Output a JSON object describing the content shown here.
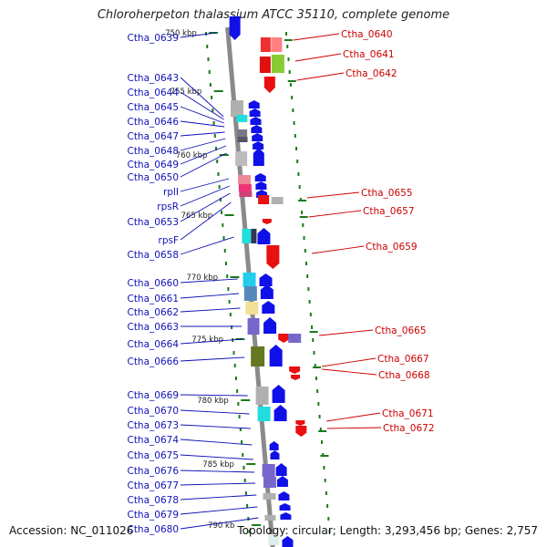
{
  "title": "Chloroherpeton thalassium ATCC 35110, complete genome",
  "footer": {
    "accession": "Accession: NC_011026",
    "summary": "Topology: circular; Length: 3,293,456 bp; Genes: 2,757"
  },
  "colors": {
    "left_label": "#1010b8",
    "right_label": "#cc0000",
    "backbone": "#8a8a8a",
    "tick": "#1a7a1a",
    "forward": "#1010e8",
    "reverse": "#e81010"
  },
  "scale_labels": [
    "750 kbp",
    "755 kbp",
    "760 kbp",
    "765 kbp",
    "770 kbp",
    "775 kbp",
    "780 kbp",
    "785 kbp",
    "790 kb"
  ],
  "left_genes": [
    "Ctha_0639",
    "Ctha_0643",
    "Ctha_0644",
    "Ctha_0645",
    "Ctha_0646",
    "Ctha_0647",
    "Ctha_0648",
    "Ctha_0649",
    "Ctha_0650",
    "rplI",
    "rpsR",
    "Ctha_0653",
    "rpsF",
    "Ctha_0658",
    "Ctha_0660",
    "Ctha_0661",
    "Ctha_0662",
    "Ctha_0663",
    "Ctha_0664",
    "Ctha_0666",
    "Ctha_0669",
    "Ctha_0670",
    "Ctha_0673",
    "Ctha_0674",
    "Ctha_0675",
    "Ctha_0676",
    "Ctha_0677",
    "Ctha_0678",
    "Ctha_0679",
    "Ctha_0680"
  ],
  "right_genes": [
    "Ctha_0640",
    "Ctha_0641",
    "Ctha_0642",
    "Ctha_0655",
    "Ctha_0657",
    "Ctha_0659",
    "Ctha_0665",
    "Ctha_0667",
    "Ctha_0668",
    "Ctha_0671",
    "Ctha_0672"
  ]
}
